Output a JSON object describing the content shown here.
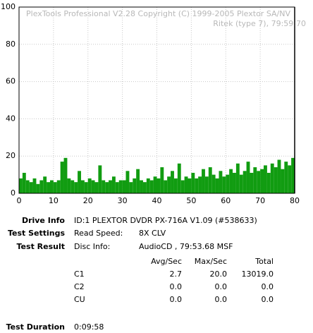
{
  "chart_data": {
    "type": "bar",
    "annotations": [
      "PlexTools Professional V2.28 Copyright (C) 1999-2005 Plextor SA/NV",
      "Ritek (type 7), 79:59:70"
    ],
    "x": [
      0.5,
      1.5,
      2.5,
      3.5,
      4.5,
      5.5,
      6.5,
      7.5,
      8.5,
      9.5,
      10.5,
      11.5,
      12.5,
      13.5,
      14.5,
      15.5,
      16.5,
      17.5,
      18.5,
      19.5,
      20.5,
      21.5,
      22.5,
      23.5,
      24.5,
      25.5,
      26.5,
      27.5,
      28.5,
      29.5,
      30.5,
      31.5,
      32.5,
      33.5,
      34.5,
      35.5,
      36.5,
      37.5,
      38.5,
      39.5,
      40.5,
      41.5,
      42.5,
      43.5,
      44.5,
      45.5,
      46.5,
      47.5,
      48.5,
      49.5,
      50.5,
      51.5,
      52.5,
      53.5,
      54.5,
      55.5,
      56.5,
      57.5,
      58.5,
      59.5,
      60.5,
      61.5,
      62.5,
      63.5,
      64.5,
      65.5,
      66.5,
      67.5,
      68.5,
      69.5,
      70.5,
      71.5,
      72.5,
      73.5,
      74.5,
      75.5,
      76.5,
      77.5,
      78.5,
      79.5
    ],
    "values": [
      8,
      11,
      7,
      6,
      8,
      5,
      7,
      9,
      6,
      7,
      6,
      7,
      17,
      19,
      8,
      7,
      6,
      12,
      7,
      6,
      8,
      7,
      6,
      15,
      7,
      6,
      7,
      9,
      6,
      7,
      7,
      12,
      6,
      8,
      13,
      7,
      6,
      8,
      7,
      9,
      8,
      14,
      7,
      9,
      12,
      8,
      16,
      7,
      9,
      8,
      11,
      8,
      9,
      13,
      9,
      14,
      10,
      8,
      12,
      9,
      10,
      13,
      11,
      16,
      10,
      12,
      17,
      11,
      14,
      12,
      13,
      15,
      11,
      16,
      14,
      18,
      13,
      17,
      15,
      19
    ],
    "color": "#119c11",
    "xlim": [
      0,
      80
    ],
    "ylim": [
      0,
      100
    ],
    "xticks": [
      0,
      10,
      20,
      30,
      40,
      50,
      60,
      70,
      80
    ],
    "yticks": [
      0,
      20,
      40,
      60,
      80,
      100
    ],
    "grid": true
  },
  "report": {
    "drive_info": {
      "label": "Drive Info",
      "value": "ID:1 PLEXTOR DVDR PX-716A V1.09 (#538633)"
    },
    "test_settings": {
      "label": "Test Settings",
      "key": "Read Speed:",
      "value": "8X CLV"
    },
    "test_result": {
      "label": "Test Result",
      "key": "Disc Info:",
      "value": "AudioCD , 79:53.68 MSF"
    },
    "table": {
      "header": [
        "Avg/Sec",
        "Max/Sec",
        "Total"
      ],
      "rows": [
        [
          "C1",
          "2.7",
          "20.0",
          "13019.0"
        ],
        [
          "C2",
          "0.0",
          "0.0",
          "0.0"
        ],
        [
          "CU",
          "0.0",
          "0.0",
          "0.0"
        ]
      ]
    },
    "test_duration": {
      "label": "Test Duration",
      "value": "0:09:58"
    }
  }
}
